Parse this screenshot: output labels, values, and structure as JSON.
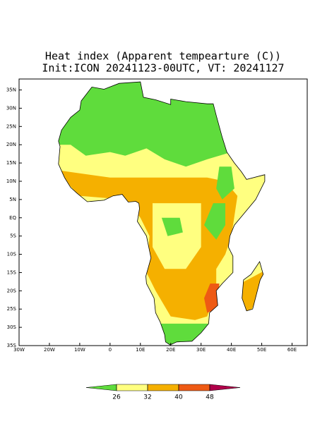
{
  "map": {
    "title": "Heat index (Apparent tempearture (C))",
    "subtitle": "Init:ICON 20241123-00UTC, VT: 20241127",
    "xlim": [
      -30,
      65
    ],
    "ylim": [
      -35,
      38
    ],
    "xticks": [
      {
        "value": -30,
        "label": "30W"
      },
      {
        "value": -20,
        "label": "20W"
      },
      {
        "value": -10,
        "label": "10W"
      },
      0,
      {
        "value": 10,
        "label": "10E"
      },
      {
        "value": 20,
        "label": "20E"
      },
      {
        "value": 30,
        "label": "30E"
      },
      {
        "value": 40,
        "label": "40E"
      },
      {
        "value": 50,
        "label": "50E"
      },
      {
        "value": 60,
        "label": "60E"
      }
    ],
    "yticks": [
      {
        "value": 35,
        "label": "35N"
      },
      {
        "value": 30,
        "label": "30N"
      },
      {
        "value": 25,
        "label": "25N"
      },
      {
        "value": 20,
        "label": "20N"
      },
      {
        "value": 15,
        "label": "15N"
      },
      {
        "value": 10,
        "label": "10N"
      },
      {
        "value": 5,
        "label": "5N"
      },
      {
        "value": 0,
        "label": "EQ"
      },
      {
        "value": -5,
        "label": "5S"
      },
      {
        "value": -10,
        "label": "10S"
      },
      {
        "value": -15,
        "label": "15S"
      },
      {
        "value": -20,
        "label": "20S"
      },
      {
        "value": -25,
        "label": "25S"
      },
      {
        "value": -30,
        "label": "30S"
      },
      {
        "value": -35,
        "label": "35S"
      }
    ],
    "colorbar": {
      "levels": [
        26,
        32,
        40,
        48
      ],
      "colors": [
        "#5fdc3c",
        "#ffff80",
        "#f5b000",
        "#ee5a14",
        "#b0004a"
      ]
    }
  }
}
